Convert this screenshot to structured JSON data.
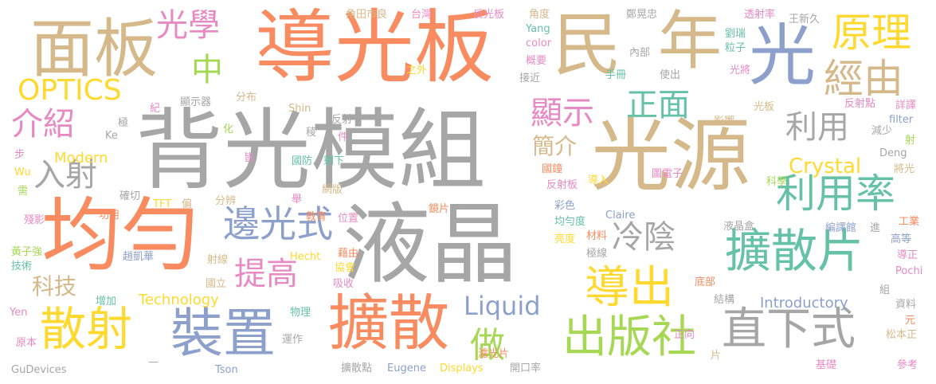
{
  "palette": {
    "gray": "#a6a6a6",
    "tan": "#d5b98a",
    "orange": "#f98b60",
    "blue": "#8ca0cb",
    "green": "#66c2a5",
    "lime": "#a6d854",
    "yellow": "#ffd92f",
    "pink": "#e78ac3"
  },
  "words": [
    {
      "text": "液晶",
      "color": "#a6a6a6"
    },
    {
      "text": "背光模組",
      "color": "#a6a6a6"
    },
    {
      "text": "導光板",
      "color": "#f98b60"
    },
    {
      "text": "光源",
      "color": "#d5b98a"
    },
    {
      "text": "均勻",
      "color": "#f98b60"
    },
    {
      "text": "面板",
      "color": "#d5b98a"
    },
    {
      "text": "民",
      "color": "#d5b98a"
    },
    {
      "text": "年",
      "color": "#d5b98a"
    },
    {
      "text": "光",
      "color": "#8ca0cb"
    },
    {
      "text": "擴散",
      "color": "#f98b60"
    },
    {
      "text": "裝置",
      "color": "#8ca0cb"
    },
    {
      "text": "散射",
      "color": "#ffd92f"
    },
    {
      "text": "擴散片",
      "color": "#66c2a5"
    },
    {
      "text": "直下式",
      "color": "#a6a6a6"
    },
    {
      "text": "出版社",
      "color": "#a6d854"
    },
    {
      "text": "導出",
      "color": "#ffd92f"
    },
    {
      "text": "利用率",
      "color": "#66c2a5"
    },
    {
      "text": "邊光式",
      "color": "#8ca0cb"
    },
    {
      "text": "原理",
      "color": "#ffd92f"
    },
    {
      "text": "經由",
      "color": "#d5b98a"
    },
    {
      "text": "正面",
      "color": "#66c2a5"
    },
    {
      "text": "顯示",
      "color": "#e78ac3"
    },
    {
      "text": "利用",
      "color": "#a6a6a6"
    },
    {
      "text": "入射",
      "color": "#a6a6a6"
    },
    {
      "text": "介紹",
      "color": "#e78ac3"
    },
    {
      "text": "光學",
      "color": "#e78ac3"
    },
    {
      "text": "中",
      "color": "#a6d854"
    },
    {
      "text": "OPTICS",
      "color": "#ffd92f"
    },
    {
      "text": "提高",
      "color": "#e78ac3"
    },
    {
      "text": "冷陰",
      "color": "#a6a6a6"
    },
    {
      "text": "Liquid",
      "color": "#8ca0cb"
    },
    {
      "text": "做",
      "color": "#a6d854"
    },
    {
      "text": "Crystal",
      "color": "#ffd92f"
    },
    {
      "text": "科技",
      "color": "#d5b98a"
    },
    {
      "text": "Modern",
      "color": "#ffd92f"
    },
    {
      "text": "簡介",
      "color": "#d5b98a"
    },
    {
      "text": "Technology",
      "color": "#ffd92f"
    },
    {
      "text": "Introductory",
      "color": "#8ca0cb"
    },
    {
      "text": "角田市良",
      "color": "#d5b98a"
    },
    {
      "text": "台灣",
      "color": "#e78ac3"
    },
    {
      "text": "反光板",
      "color": "#e78ac3"
    },
    {
      "text": "角度",
      "color": "#d5b98a"
    },
    {
      "text": "Yang",
      "color": "#66c2a5"
    },
    {
      "text": "color",
      "color": "#e78ac3"
    },
    {
      "text": "概要",
      "color": "#e78ac3"
    },
    {
      "text": "接近",
      "color": "#a6a6a6"
    },
    {
      "text": "之外",
      "color": "#ffd92f"
    },
    {
      "text": "鄭晃忠",
      "color": "#a6a6a6"
    },
    {
      "text": "內部",
      "color": "#a6a6a6"
    },
    {
      "text": "手冊",
      "color": "#66c2a5"
    },
    {
      "text": "使出",
      "color": "#a6a6a6"
    },
    {
      "text": "Claire",
      "color": "#8ca0cb"
    },
    {
      "text": "劉瑞",
      "color": "#66c2a5"
    },
    {
      "text": "粒子",
      "color": "#66c2a5"
    },
    {
      "text": "光將",
      "color": "#e78ac3"
    },
    {
      "text": "透射率",
      "color": "#e78ac3"
    },
    {
      "text": "王新久",
      "color": "#a6a6a6"
    },
    {
      "text": "光板",
      "color": "#d5b98a"
    },
    {
      "text": "反射點",
      "color": "#e78ac3"
    },
    {
      "text": "詳譯",
      "color": "#e78ac3"
    },
    {
      "text": "filter",
      "color": "#8ca0cb"
    },
    {
      "text": "射",
      "color": "#a6d854"
    },
    {
      "text": "減少",
      "color": "#a6a6a6"
    },
    {
      "text": "影響",
      "color": "#d5b98a"
    },
    {
      "text": "Deng",
      "color": "#a6a6a6"
    },
    {
      "text": "將光",
      "color": "#d5b98a"
    },
    {
      "text": "科學",
      "color": "#a6d854"
    },
    {
      "text": "圖電子",
      "color": "#e78ac3"
    },
    {
      "text": "導入",
      "color": "#ffd92f"
    },
    {
      "text": "國鐘",
      "color": "#f98b60"
    },
    {
      "text": "反射板",
      "color": "#e78ac3"
    },
    {
      "text": "彩色",
      "color": "#8ca0cb"
    },
    {
      "text": "均勻度",
      "color": "#66c2a5"
    },
    {
      "text": "亮度",
      "color": "#ffd92f"
    },
    {
      "text": "材料",
      "color": "#f98b60"
    },
    {
      "text": "極線",
      "color": "#a6a6a6"
    },
    {
      "text": "液晶盒",
      "color": "#a6a6a6"
    },
    {
      "text": "編譯館",
      "color": "#8ca0cb"
    },
    {
      "text": "進",
      "color": "#a6a6a6"
    },
    {
      "text": "工業",
      "color": "#f98b60"
    },
    {
      "text": "高等",
      "color": "#8ca0cb"
    },
    {
      "text": "導正",
      "color": "#e78ac3"
    },
    {
      "text": "Pochi",
      "color": "#e78ac3"
    },
    {
      "text": "組",
      "color": "#a6a6a6"
    },
    {
      "text": "資料",
      "color": "#a6a6a6"
    },
    {
      "text": "元",
      "color": "#f98b60"
    },
    {
      "text": "松本正",
      "color": "#d5b98a"
    },
    {
      "text": "參考",
      "color": "#e78ac3"
    },
    {
      "text": "基礎",
      "color": "#e78ac3"
    },
    {
      "text": "底部",
      "color": "#f98b60"
    },
    {
      "text": "結構",
      "color": "#a6a6a6"
    },
    {
      "text": "正向",
      "color": "#e78ac3"
    },
    {
      "text": "片",
      "color": "#d5b98a"
    },
    {
      "text": "開口率",
      "color": "#a6a6a6"
    },
    {
      "text": "濾光片",
      "color": "#f98b60"
    },
    {
      "text": "Displays",
      "color": "#ffd92f"
    },
    {
      "text": "Eugene",
      "color": "#8ca0cb"
    },
    {
      "text": "擴散點",
      "color": "#a6a6a6"
    },
    {
      "text": "運作",
      "color": "#a6a6a6"
    },
    {
      "text": "物理",
      "color": "#66c2a5"
    },
    {
      "text": "吸收",
      "color": "#e78ac3"
    },
    {
      "text": "協會",
      "color": "#ffd92f"
    },
    {
      "text": "藉由",
      "color": "#f98b60"
    },
    {
      "text": "Hecht",
      "color": "#ffd92f"
    },
    {
      "text": "鏡片",
      "color": "#f98b60"
    },
    {
      "text": "位置",
      "color": "#e78ac3"
    },
    {
      "text": "教育",
      "color": "#f98b60"
    },
    {
      "text": "網版",
      "color": "#d5b98a"
    },
    {
      "text": "剩下",
      "color": "#66c2a5"
    },
    {
      "text": "國防",
      "color": "#66c2a5"
    },
    {
      "text": "件",
      "color": "#e78ac3"
    },
    {
      "text": "反射",
      "color": "#a6a6a6"
    },
    {
      "text": "稜",
      "color": "#a6a6a6"
    },
    {
      "text": "Shin",
      "color": "#d5b98a"
    },
    {
      "text": "分布",
      "color": "#d5b98a"
    },
    {
      "text": "顯示器",
      "color": "#a6a6a6"
    },
    {
      "text": "紀",
      "color": "#e78ac3"
    },
    {
      "text": "化",
      "color": "#a6d854"
    },
    {
      "text": "皆",
      "color": "#e78ac3"
    },
    {
      "text": "分辨",
      "color": "#d5b98a"
    },
    {
      "text": "舉",
      "color": "#e78ac3"
    },
    {
      "text": "TFT",
      "color": "#ffd92f"
    },
    {
      "text": "偏",
      "color": "#d5b98a"
    },
    {
      "text": "功用",
      "color": "#f98b60"
    },
    {
      "text": "確切",
      "color": "#a6a6a6"
    },
    {
      "text": "殘影",
      "color": "#e78ac3"
    },
    {
      "text": "黃子強",
      "color": "#a6d854"
    },
    {
      "text": "技術",
      "color": "#66c2a5"
    },
    {
      "text": "趙凱華",
      "color": "#8ca0cb"
    },
    {
      "text": "射線",
      "color": "#d5b98a"
    },
    {
      "text": "國立",
      "color": "#d5b98a"
    },
    {
      "text": "增加",
      "color": "#66c2a5"
    },
    {
      "text": "Yen",
      "color": "#e78ac3"
    },
    {
      "text": "原本",
      "color": "#e78ac3"
    },
    {
      "text": "GuDevices",
      "color": "#a6a6a6"
    },
    {
      "text": "—",
      "color": "#a6a6a6"
    },
    {
      "text": "Tson",
      "color": "#8ca0cb"
    },
    {
      "text": "需",
      "color": "#a6d854"
    },
    {
      "text": "Wu",
      "color": "#ffd92f"
    },
    {
      "text": "步",
      "color": "#e78ac3"
    },
    {
      "text": "Ke",
      "color": "#a6a6a6"
    },
    {
      "text": "極",
      "color": "#a6a6a6"
    }
  ]
}
